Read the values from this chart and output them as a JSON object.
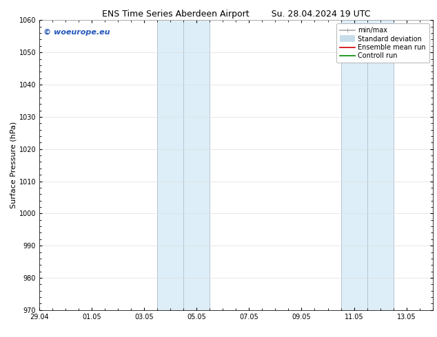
{
  "title_left": "ENS Time Series Aberdeen Airport",
  "title_right": "Su. 28.04.2024 19 UTC",
  "ylabel": "Surface Pressure (hPa)",
  "ylim": [
    970,
    1060
  ],
  "yticks": [
    970,
    980,
    990,
    1000,
    1010,
    1020,
    1030,
    1040,
    1050,
    1060
  ],
  "xlabel_ticks": [
    "29.04",
    "01.05",
    "03.05",
    "05.05",
    "07.05",
    "09.05",
    "11.05",
    "13.05"
  ],
  "x_tick_positions": [
    0,
    2,
    4,
    6,
    8,
    10,
    12,
    14
  ],
  "xlim": [
    0,
    15
  ],
  "shade_regions": [
    {
      "x_start": -0.3,
      "x_end": 0.0,
      "color": "#ccddf0"
    },
    {
      "x_start": 4.5,
      "x_end": 6.5,
      "color": "#ddeef8"
    },
    {
      "x_start": 11.5,
      "x_end": 13.5,
      "color": "#ddeef8"
    }
  ],
  "shade_dividers": [
    4.5,
    5.5,
    6.5,
    11.5,
    12.5,
    13.5
  ],
  "grid_color": "#dddddd",
  "background_color": "#ffffff",
  "plot_bg_color": "#ffffff",
  "watermark_text": "© woeurope.eu",
  "watermark_color": "#2255bb",
  "legend_entries": [
    {
      "label": "min/max",
      "color": "#aaaaaa",
      "lw": 1.2,
      "style": "caps"
    },
    {
      "label": "Standard deviation",
      "color": "#c8dcea",
      "lw": 7,
      "style": "thick"
    },
    {
      "label": "Ensemble mean run",
      "color": "#cc0000",
      "lw": 1.2,
      "style": "line"
    },
    {
      "label": "Controll run",
      "color": "#008800",
      "lw": 1.2,
      "style": "line"
    }
  ],
  "title_fontsize": 9,
  "tick_fontsize": 7,
  "legend_fontsize": 7,
  "ylabel_fontsize": 8,
  "watermark_fontsize": 8
}
